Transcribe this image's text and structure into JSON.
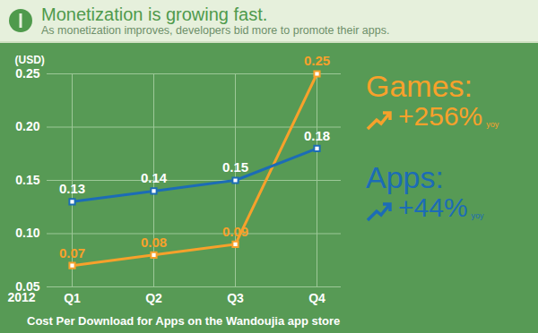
{
  "chart_data": {
    "type": "line",
    "title": "Monetization is growing fast.",
    "subtitle": "As monetization improves, developers bid more to promote their apps.",
    "caption": "Cost Per Download for Apps on the Wandoujia app store",
    "y_label": "(USD)",
    "x_prefix": "2012",
    "categories": [
      "Q1",
      "Q2",
      "Q3",
      "Q4"
    ],
    "series": [
      {
        "name": "Games:",
        "color": "#f7a12b",
        "values": [
          0.07,
          0.08,
          0.09,
          0.25
        ],
        "growth": "+256%",
        "growth_period": "yoy"
      },
      {
        "name": "Apps:",
        "color": "#1c6cb6",
        "values": [
          0.13,
          0.14,
          0.15,
          0.18
        ],
        "growth": "+44%",
        "growth_period": "yoy"
      }
    ],
    "ylim": [
      0.05,
      0.25
    ],
    "yticks": [
      0.05,
      {
        "value": 0.1,
        "label": "0.10"
      },
      0.15,
      {
        "value": 0.2,
        "label": "0.20"
      },
      0.25
    ],
    "grid": true,
    "data_labels": true,
    "marker": "square"
  }
}
